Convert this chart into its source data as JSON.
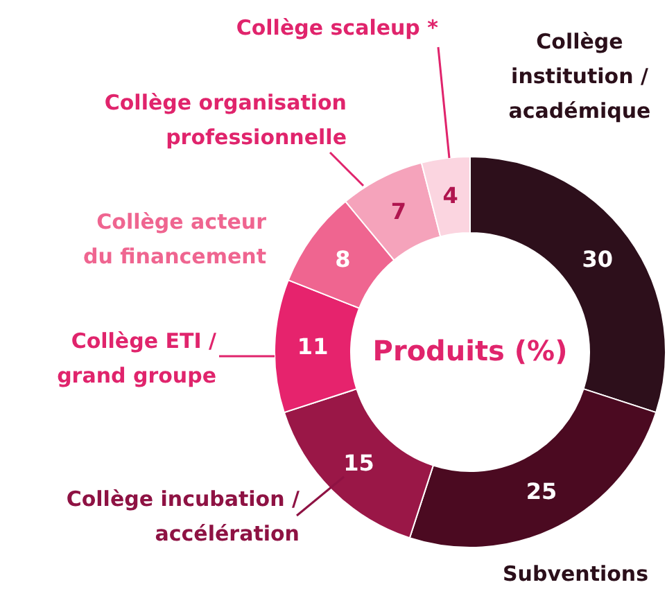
{
  "chart_data": {
    "type": "donut",
    "title": "Produits (%)",
    "categories": [
      "Collège institution / académique",
      "Subventions",
      "Collège incubation / accélération",
      "Collège ETI / grand groupe",
      "Collège acteur du financement",
      "Collège organisation professionnelle",
      "Collège scaleup *"
    ],
    "values": [
      30,
      25,
      15,
      11,
      8,
      7,
      4
    ],
    "colors": [
      "#2d0f1b",
      "#4b0a21",
      "#9a1747",
      "#e6236d",
      "#ef6590",
      "#f5a3bb",
      "#fbd5e0"
    ],
    "data_labels": true
  }
}
